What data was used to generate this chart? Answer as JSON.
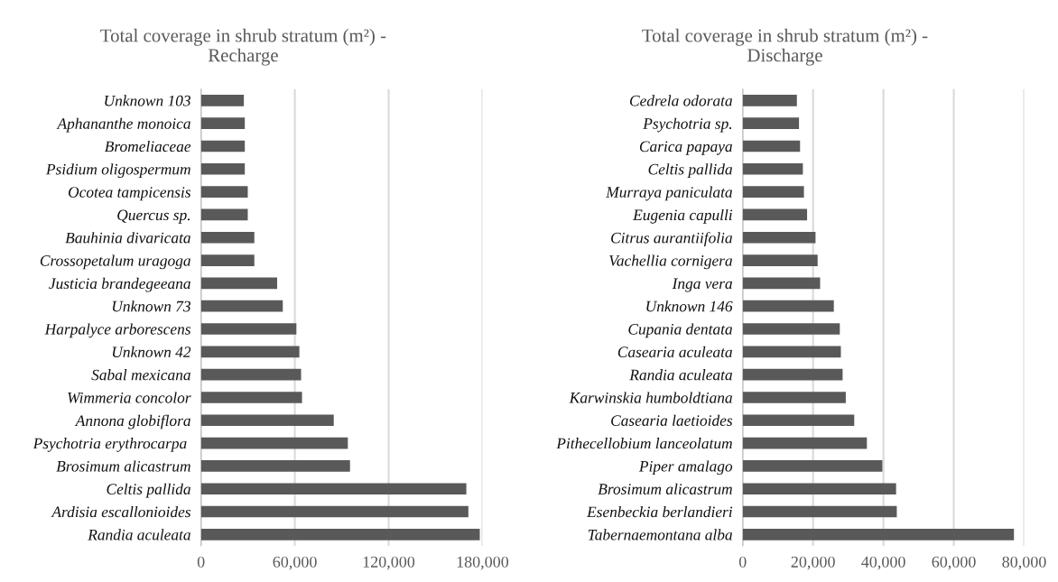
{
  "chart_data": [
    {
      "type": "bar",
      "orientation": "horizontal",
      "title": "Total coverage in shrub stratum (m²) -\nRecharge",
      "color": "#595959",
      "grid": "x",
      "categories": [
        "Unknown 103",
        "Aphananthe monoica",
        "Bromeliaceae",
        "Psidium oligospermum",
        "Ocotea tampicensis",
        "Quercus sp.",
        "Bauhinia divaricata",
        "Crossopetalum uragoga",
        "Justicia brandegeeana",
        "Unknown 73",
        "Harpalyce arborescens",
        "Unknown 42",
        "Sabal mexicana",
        "Wimmeria concolor",
        "Annona globiflora",
        "Psychotria erythrocarpa ",
        "Brosimum alicastrum",
        "Celtis pallida",
        "Ardisia escallonioides",
        "Randia aculeata"
      ],
      "values": [
        27400,
        28000,
        28000,
        28000,
        29900,
        29900,
        34100,
        34100,
        48700,
        52300,
        61000,
        62900,
        64000,
        64600,
        84900,
        93900,
        95300,
        169700,
        171000,
        178300
      ],
      "xlim": [
        0,
        180000
      ],
      "xticks": [
        0,
        {
          "value": 60000,
          "label": "60,000"
        },
        {
          "value": 120000,
          "label": "120,000"
        },
        {
          "value": 180000,
          "label": "180,000"
        }
      ]
    },
    {
      "type": "bar",
      "orientation": "horizontal",
      "title": "Total coverage in shrub stratum (m²) -\nDischarge",
      "color": "#595959",
      "grid": "x",
      "categories": [
        "Cedrela odorata",
        "Psychotria sp.",
        "Carica papaya",
        "Celtis pallida",
        "Murraya paniculata",
        "Eugenia capulli",
        "Citrus aurantiifolia",
        "Vachellia cornigera",
        "Inga vera",
        "Unknown 146",
        "Cupania dentata",
        "Casearia aculeata",
        "Randia aculeata",
        "Karwinskia humboldtiana",
        "Casearia laetioides",
        "Pithecellobium lanceolatum",
        "Piper amalago",
        "Brosimum alicastrum",
        "Esenbeckia berlandieri",
        "Tabernaemontana alba"
      ],
      "values": [
        15400,
        16000,
        16300,
        17100,
        17400,
        18300,
        20700,
        21300,
        22000,
        25900,
        27600,
        27900,
        28400,
        29300,
        31700,
        35300,
        39700,
        43600,
        43800,
        77100
      ],
      "xlim": [
        0,
        80000
      ],
      "xticks": [
        0,
        {
          "value": 20000,
          "label": "20,000"
        },
        {
          "value": 40000,
          "label": "40,000"
        },
        {
          "value": 60000,
          "label": "60,000"
        },
        {
          "value": 80000,
          "label": "80,000"
        }
      ]
    }
  ]
}
